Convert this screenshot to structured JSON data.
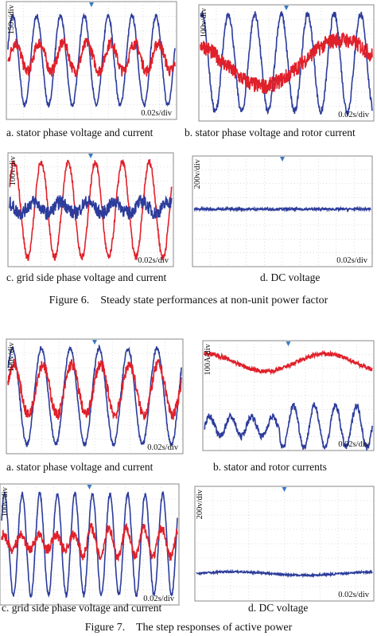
{
  "figures": [
    {
      "panels": [
        {
          "scale": "150v/div",
          "time": "0.02s/div",
          "caption": "a. stator phase voltage and current"
        },
        {
          "scale": "100v/div",
          "time": "0.02s/div",
          "caption": "b. stator phase voltage and rotor current"
        },
        {
          "scale": "100v/div",
          "time": "0.02s/div",
          "caption": "c. grid side phase voltage and current"
        },
        {
          "scale": "200v/div",
          "time": "0.02s/div",
          "caption": "d. DC voltage"
        }
      ],
      "caption": "Figure 6.    Steady state performances at non-unit power factor"
    },
    {
      "panels": [
        {
          "scale": "100v/div",
          "time": "0.02s/div",
          "caption": "a. stator phase voltage and current"
        },
        {
          "scale": "100A/div",
          "time": "0.02s/div",
          "caption": "b. stator and rotor currents"
        },
        {
          "scale": "100v/div",
          "time": "0.02s/div",
          "caption": "c. grid side phase voltage and current"
        },
        {
          "scale": "200v/div",
          "time": "0.02s/div",
          "caption": "d. DC voltage"
        }
      ],
      "caption": "Figure 7.    The step responses of active power"
    }
  ]
}
